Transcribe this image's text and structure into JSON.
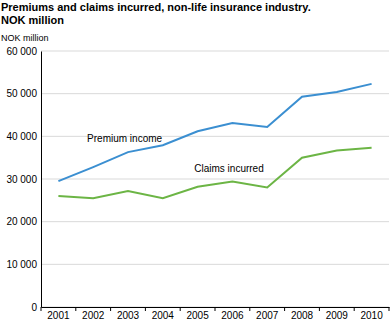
{
  "chart_data": {
    "type": "line",
    "title": "Premiums and claims incurred, non-life insurance industry.",
    "subtitle": "NOK million",
    "y_label": "NOK million",
    "categories": [
      "2001",
      "2002",
      "2003",
      "2004",
      "2005",
      "2006",
      "2007",
      "2008",
      "2009",
      "2010"
    ],
    "series": [
      {
        "name": "Premium income",
        "color": "#3b8fd1",
        "values": [
          29500,
          32800,
          36300,
          37900,
          41200,
          43100,
          42200,
          49300,
          50400,
          52300
        ]
      },
      {
        "name": "Claims incurred",
        "color": "#6cb545",
        "values": [
          26000,
          25500,
          27200,
          25500,
          28200,
          29400,
          28000,
          35000,
          36700,
          37300
        ]
      }
    ],
    "ylim": [
      0,
      60000
    ],
    "yticks": [
      0,
      {
        "value": 10000,
        "label": "10 000"
      },
      {
        "value": 20000,
        "label": "20 000"
      },
      {
        "value": 30000,
        "label": "30 000"
      },
      {
        "value": 40000,
        "label": "40 000"
      },
      {
        "value": 50000,
        "label": "50 000"
      },
      {
        "value": 60000,
        "label": "60 000"
      }
    ],
    "grid": true
  }
}
